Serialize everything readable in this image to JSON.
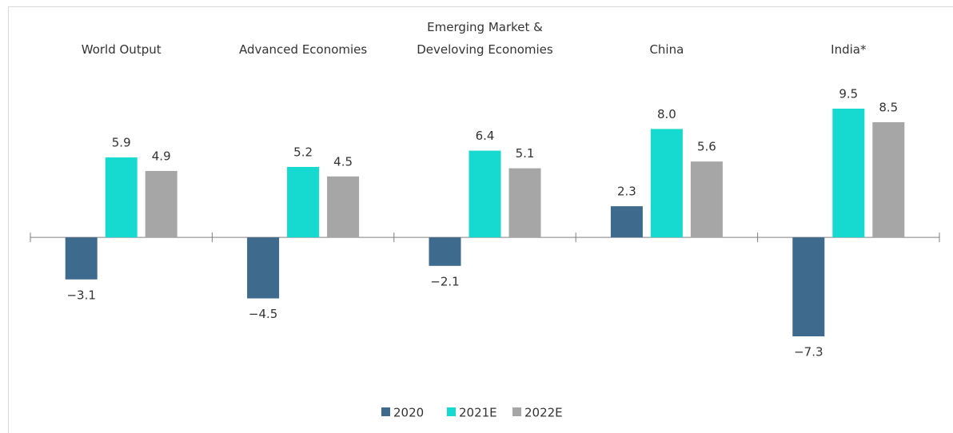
{
  "chart_data": {
    "type": "bar",
    "categories": [
      "World Output",
      "Advanced Economies",
      "Emerging Market & Develoving Economies",
      "China",
      "India*"
    ],
    "series": [
      {
        "name": "2020",
        "color": "#3e6a8d",
        "values": [
          -3.1,
          -4.5,
          -2.1,
          2.3,
          -7.3
        ],
        "value_labels": [
          "−3.1",
          "−4.5",
          "−2.1",
          "2.3",
          "−7.3"
        ]
      },
      {
        "name": "2021E",
        "color": "#16d9d0",
        "values": [
          5.9,
          5.2,
          6.4,
          8.0,
          9.5
        ],
        "value_labels": [
          "5.9",
          "5.2",
          "6.4",
          "8.0",
          "9.5"
        ]
      },
      {
        "name": "2022E",
        "color": "#a6a6a6",
        "values": [
          4.9,
          4.5,
          5.1,
          5.6,
          8.5
        ],
        "value_labels": [
          "4.9",
          "4.5",
          "5.1",
          "5.6",
          "8.5"
        ]
      }
    ],
    "legend": "bottom"
  }
}
